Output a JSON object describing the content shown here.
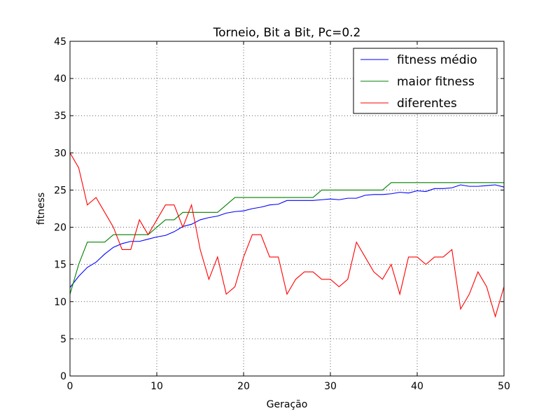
{
  "chart_data": {
    "type": "line",
    "title": "Torneio, Bit a Bit, Pc=0.2",
    "xlabel": "Geração",
    "ylabel": "fitness",
    "xlim": [
      0,
      50
    ],
    "ylim": [
      0,
      45
    ],
    "xticks": [
      0,
      10,
      20,
      30,
      40,
      50
    ],
    "yticks": [
      0,
      5,
      10,
      15,
      20,
      25,
      30,
      35,
      40,
      45
    ],
    "grid": true,
    "legend_position": "top-right",
    "x": [
      0,
      1,
      2,
      3,
      4,
      5,
      6,
      7,
      8,
      9,
      10,
      11,
      12,
      13,
      14,
      15,
      16,
      17,
      18,
      19,
      20,
      21,
      22,
      23,
      24,
      25,
      26,
      27,
      28,
      29,
      30,
      31,
      32,
      33,
      34,
      35,
      36,
      37,
      38,
      39,
      40,
      41,
      42,
      43,
      44,
      45,
      46,
      47,
      48,
      49,
      50
    ],
    "series": [
      {
        "name": "fitness médio",
        "color": "#0000ff",
        "values": [
          11.9,
          13.4,
          14.6,
          15.3,
          16.4,
          17.3,
          17.8,
          18.1,
          18.1,
          18.4,
          18.7,
          18.9,
          19.4,
          20.1,
          20.4,
          21.0,
          21.3,
          21.5,
          21.9,
          22.1,
          22.2,
          22.5,
          22.7,
          23.0,
          23.1,
          23.6,
          23.6,
          23.6,
          23.6,
          23.7,
          23.8,
          23.7,
          23.9,
          23.9,
          24.3,
          24.4,
          24.4,
          24.5,
          24.7,
          24.6,
          24.9,
          24.8,
          25.2,
          25.2,
          25.3,
          25.7,
          25.5,
          25.5,
          25.6,
          25.7,
          25.4
        ]
      },
      {
        "name": "maior fitness",
        "color": "#008000",
        "values": [
          11,
          15,
          18,
          18,
          18,
          19,
          19,
          19,
          19,
          19,
          20,
          21,
          21,
          22,
          22,
          22,
          22,
          22,
          23,
          24,
          24,
          24,
          24,
          24,
          24,
          24,
          24,
          24,
          24,
          25,
          25,
          25,
          25,
          25,
          25,
          25,
          25,
          26,
          26,
          26,
          26,
          26,
          26,
          26,
          26,
          26,
          26,
          26,
          26,
          26,
          26
        ]
      },
      {
        "name": "diferentes",
        "color": "#ff0000",
        "values": [
          30,
          28,
          23,
          24,
          22,
          20,
          17,
          17,
          21,
          19,
          21,
          23,
          23,
          20,
          23,
          17,
          13,
          16,
          11,
          12,
          16,
          19,
          19,
          16,
          16,
          11,
          13,
          14,
          14,
          13,
          13,
          12,
          13,
          18,
          16,
          14,
          13,
          15,
          11,
          16,
          16,
          15,
          16,
          16,
          17,
          9,
          11,
          14,
          12,
          8,
          12
        ]
      }
    ]
  }
}
